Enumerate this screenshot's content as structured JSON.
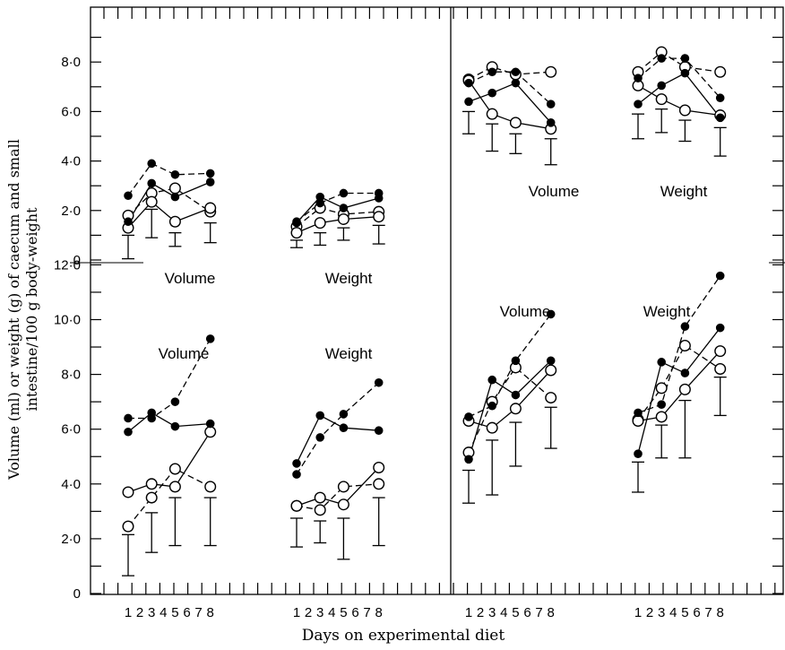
{
  "chart_data": {
    "type": "line",
    "xlabel": "Days on experimental diet",
    "ylabel_line1": "Volume (ml) or weight (g) of caecum and small",
    "ylabel_line2": "intestine/100 g body-weight",
    "x_ticks": [
      1,
      2,
      3,
      4,
      5,
      6,
      7,
      8
    ],
    "top_y_ticks": [
      {
        "v": 0,
        "label": "0"
      },
      {
        "v": 2,
        "label": "2·0"
      },
      {
        "v": 4,
        "label": "4·0"
      },
      {
        "v": 6,
        "label": "6·0"
      },
      {
        "v": 8,
        "label": "8·0"
      }
    ],
    "bottom_y_ticks": [
      {
        "v": 0,
        "label": "0"
      },
      {
        "v": 2,
        "label": "2·0"
      },
      {
        "v": 4,
        "label": "4·0"
      },
      {
        "v": 6,
        "label": "6·0"
      },
      {
        "v": 8,
        "label": "8·0"
      },
      {
        "v": 10,
        "label": "10·0"
      },
      {
        "v": 12,
        "label": "12·0"
      }
    ],
    "top_ylim": [
      0,
      9
    ],
    "bottom_ylim": [
      0,
      13
    ],
    "panels": [
      {
        "id": "top-left",
        "row": "top",
        "column": "left",
        "labels": [
          "Volume",
          "Weight"
        ],
        "groups": [
          {
            "label": "Volume",
            "series": [
              {
                "marker": "filled",
                "style": "dashed",
                "x": [
                  1,
                  3,
                  5,
                  8
                ],
                "y": [
                  2.6,
                  3.9,
                  3.45,
                  3.5
                ]
              },
              {
                "marker": "filled",
                "style": "solid",
                "x": [
                  1,
                  3,
                  5,
                  8
                ],
                "y": [
                  1.55,
                  3.1,
                  2.55,
                  3.15
                ]
              },
              {
                "marker": "open",
                "style": "dashed",
                "x": [
                  1,
                  3,
                  5,
                  8
                ],
                "y": [
                  1.8,
                  2.7,
                  2.9,
                  1.95
                ]
              },
              {
                "marker": "open",
                "style": "solid",
                "x": [
                  1,
                  3,
                  5,
                  8
                ],
                "y": [
                  1.3,
                  2.35,
                  1.55,
                  2.1
                ]
              }
            ],
            "error_bars": [
              {
                "x": 1,
                "low": 0.05,
                "high": 1.0
              },
              {
                "x": 3,
                "low": 0.9,
                "high": 2.05
              },
              {
                "x": 5,
                "low": 0.55,
                "high": 1.1
              },
              {
                "x": 8,
                "low": 0.7,
                "high": 1.5
              }
            ]
          },
          {
            "label": "Weight",
            "series": [
              {
                "marker": "filled",
                "style": "dashed",
                "x": [
                  1,
                  3,
                  5,
                  8
                ],
                "y": [
                  1.55,
                  2.3,
                  2.7,
                  2.7
                ]
              },
              {
                "marker": "filled",
                "style": "solid",
                "x": [
                  1,
                  3,
                  5,
                  8
                ],
                "y": [
                  1.5,
                  2.55,
                  2.1,
                  2.5
                ]
              },
              {
                "marker": "open",
                "style": "dashed",
                "x": [
                  1,
                  3,
                  5,
                  8
                ],
                "y": [
                  1.35,
                  2.1,
                  1.85,
                  1.95
                ]
              },
              {
                "marker": "open",
                "style": "solid",
                "x": [
                  1,
                  3,
                  5,
                  8
                ],
                "y": [
                  1.1,
                  1.5,
                  1.65,
                  1.75
                ]
              }
            ],
            "error_bars": [
              {
                "x": 1,
                "low": 0.5,
                "high": 0.8
              },
              {
                "x": 3,
                "low": 0.6,
                "high": 1.1
              },
              {
                "x": 5,
                "low": 0.8,
                "high": 1.3
              },
              {
                "x": 8,
                "low": 0.65,
                "high": 1.4
              }
            ]
          }
        ]
      },
      {
        "id": "top-right",
        "row": "top",
        "column": "right",
        "labels": [
          "Volume",
          "Weight"
        ],
        "groups": [
          {
            "label": "Volume",
            "series": [
              {
                "marker": "open",
                "style": "dashed",
                "x": [
                  1,
                  3,
                  5,
                  8
                ],
                "y": [
                  7.3,
                  7.8,
                  7.5,
                  7.6
                ]
              },
              {
                "marker": "filled",
                "style": "dashed",
                "x": [
                  1,
                  3,
                  5,
                  8
                ],
                "y": [
                  7.15,
                  7.6,
                  7.6,
                  6.3
                ]
              },
              {
                "marker": "filled",
                "style": "solid",
                "x": [
                  1,
                  3,
                  5,
                  8
                ],
                "y": [
                  6.4,
                  6.75,
                  7.15,
                  5.55
                ]
              },
              {
                "marker": "open",
                "style": "solid",
                "x": [
                  1,
                  3,
                  5,
                  8
                ],
                "y": [
                  7.25,
                  5.9,
                  5.55,
                  5.3
                ]
              }
            ],
            "error_bars": [
              {
                "x": 1,
                "low": 5.1,
                "high": 6.0
              },
              {
                "x": 3,
                "low": 4.4,
                "high": 5.5
              },
              {
                "x": 5,
                "low": 4.3,
                "high": 5.1
              },
              {
                "x": 8,
                "low": 3.85,
                "high": 4.9
              }
            ]
          },
          {
            "label": "Weight",
            "series": [
              {
                "marker": "open",
                "style": "dashed",
                "x": [
                  1,
                  3,
                  5,
                  8
                ],
                "y": [
                  7.6,
                  8.4,
                  7.8,
                  7.6
                ]
              },
              {
                "marker": "filled",
                "style": "dashed",
                "x": [
                  1,
                  3,
                  5,
                  8
                ],
                "y": [
                  7.35,
                  8.15,
                  8.15,
                  6.55
                ]
              },
              {
                "marker": "filled",
                "style": "solid",
                "x": [
                  1,
                  3,
                  5,
                  8
                ],
                "y": [
                  6.3,
                  7.05,
                  7.55,
                  5.75
                ]
              },
              {
                "marker": "open",
                "style": "solid",
                "x": [
                  1,
                  3,
                  5,
                  8
                ],
                "y": [
                  7.05,
                  6.5,
                  6.05,
                  5.85
                ]
              }
            ],
            "error_bars": [
              {
                "x": 1,
                "low": 4.9,
                "high": 5.9
              },
              {
                "x": 3,
                "low": 5.15,
                "high": 6.1
              },
              {
                "x": 5,
                "low": 4.8,
                "high": 5.65
              },
              {
                "x": 8,
                "low": 4.2,
                "high": 5.35
              }
            ]
          }
        ]
      },
      {
        "id": "bottom-left",
        "row": "bottom",
        "column": "left",
        "labels": [
          "Volume",
          "Weight"
        ],
        "groups": [
          {
            "label": "Volume",
            "series": [
              {
                "marker": "filled",
                "style": "dashed",
                "x": [
                  1,
                  3,
                  5,
                  8
                ],
                "y": [
                  6.4,
                  6.4,
                  7.0,
                  9.3
                ]
              },
              {
                "marker": "filled",
                "style": "solid",
                "x": [
                  1,
                  3,
                  5,
                  8
                ],
                "y": [
                  5.9,
                  6.6,
                  6.1,
                  6.2
                ]
              },
              {
                "marker": "open",
                "style": "dashed",
                "x": [
                  1,
                  3,
                  5,
                  8
                ],
                "y": [
                  2.45,
                  3.5,
                  4.55,
                  3.9
                ]
              },
              {
                "marker": "open",
                "style": "solid",
                "x": [
                  1,
                  3,
                  5,
                  8
                ],
                "y": [
                  3.7,
                  4.0,
                  3.9,
                  5.9
                ]
              }
            ],
            "error_bars": [
              {
                "x": 1,
                "low": 0.65,
                "high": 2.15
              },
              {
                "x": 3,
                "low": 1.5,
                "high": 2.95
              },
              {
                "x": 5,
                "low": 1.75,
                "high": 3.5
              },
              {
                "x": 8,
                "low": 1.75,
                "high": 3.5
              }
            ]
          },
          {
            "label": "Weight",
            "series": [
              {
                "marker": "filled",
                "style": "dashed",
                "x": [
                  1,
                  3,
                  5,
                  8
                ],
                "y": [
                  4.35,
                  5.7,
                  6.55,
                  7.7
                ]
              },
              {
                "marker": "filled",
                "style": "solid",
                "x": [
                  1,
                  3,
                  5,
                  8
                ],
                "y": [
                  4.75,
                  6.5,
                  6.05,
                  5.95
                ]
              },
              {
                "marker": "open",
                "style": "dashed",
                "x": [
                  1,
                  3,
                  5,
                  8
                ],
                "y": [
                  3.2,
                  3.05,
                  3.9,
                  4.0
                ]
              },
              {
                "marker": "open",
                "style": "solid",
                "x": [
                  1,
                  3,
                  5,
                  8
                ],
                "y": [
                  3.2,
                  3.5,
                  3.25,
                  4.6
                ]
              }
            ],
            "error_bars": [
              {
                "x": 1,
                "low": 1.7,
                "high": 2.75
              },
              {
                "x": 3,
                "low": 1.85,
                "high": 2.65
              },
              {
                "x": 5,
                "low": 1.25,
                "high": 2.75
              },
              {
                "x": 8,
                "low": 1.75,
                "high": 3.5
              }
            ]
          }
        ]
      },
      {
        "id": "bottom-right",
        "row": "bottom",
        "column": "right",
        "labels": [
          "Volume",
          "Weight"
        ],
        "groups": [
          {
            "label": "Volume",
            "series": [
              {
                "marker": "filled",
                "style": "dashed",
                "x": [
                  1,
                  3,
                  5,
                  8
                ],
                "y": [
                  6.45,
                  6.85,
                  8.5,
                  10.2
                ]
              },
              {
                "marker": "filled",
                "style": "solid",
                "x": [
                  1,
                  3,
                  5,
                  8
                ],
                "y": [
                  4.9,
                  7.8,
                  7.25,
                  8.5
                ]
              },
              {
                "marker": "open",
                "style": "dashed",
                "x": [
                  1,
                  3,
                  5,
                  8
                ],
                "y": [
                  5.15,
                  7.0,
                  8.25,
                  7.15
                ]
              },
              {
                "marker": "open",
                "style": "solid",
                "x": [
                  1,
                  3,
                  5,
                  8
                ],
                "y": [
                  6.3,
                  6.05,
                  6.75,
                  8.15
                ]
              }
            ],
            "error_bars": [
              {
                "x": 1,
                "low": 3.3,
                "high": 4.5
              },
              {
                "x": 3,
                "low": 3.6,
                "high": 5.6
              },
              {
                "x": 5,
                "low": 4.65,
                "high": 6.25
              },
              {
                "x": 8,
                "low": 5.3,
                "high": 6.8
              }
            ]
          },
          {
            "label": "Weight",
            "series": [
              {
                "marker": "filled",
                "style": "dashed",
                "x": [
                  1,
                  3,
                  5,
                  8
                ],
                "y": [
                  6.6,
                  6.9,
                  9.75,
                  11.6
                ]
              },
              {
                "marker": "filled",
                "style": "solid",
                "x": [
                  1,
                  3,
                  5,
                  8
                ],
                "y": [
                  5.1,
                  8.45,
                  8.05,
                  9.7
                ]
              },
              {
                "marker": "open",
                "style": "dashed",
                "x": [
                  1,
                  3,
                  5,
                  8
                ],
                "y": [
                  6.35,
                  7.5,
                  9.05,
                  8.2
                ]
              },
              {
                "marker": "open",
                "style": "solid",
                "x": [
                  1,
                  3,
                  5,
                  8
                ],
                "y": [
                  6.3,
                  6.45,
                  7.45,
                  8.85
                ]
              }
            ],
            "error_bars": [
              {
                "x": 1,
                "low": 3.7,
                "high": 4.8
              },
              {
                "x": 3,
                "low": 4.95,
                "high": 6.15
              },
              {
                "x": 5,
                "low": 4.95,
                "high": 7.05
              },
              {
                "x": 8,
                "low": 6.5,
                "high": 7.9
              }
            ]
          }
        ]
      }
    ]
  },
  "ink_color": "#000000",
  "background_color": "#ffffff"
}
